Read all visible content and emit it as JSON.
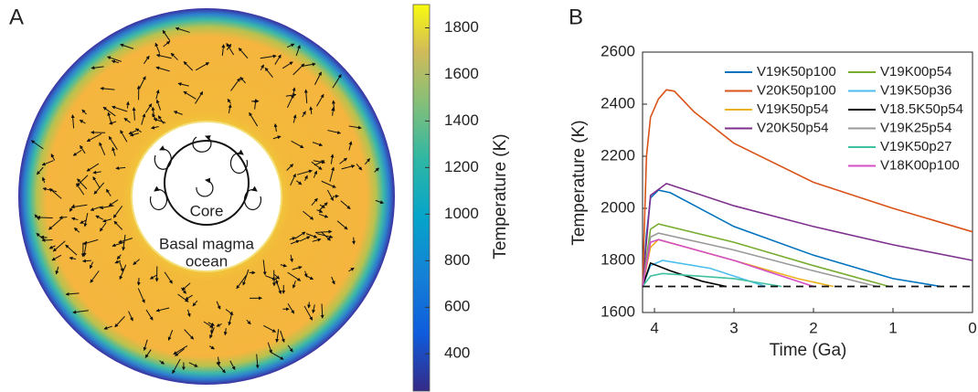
{
  "chart_data": [
    {
      "type": "field",
      "panel": "A",
      "annotations": [
        "Core",
        "Basal magma",
        "ocean"
      ],
      "colorbar_label": "Temperature (K)",
      "clim": [
        240,
        1900
      ],
      "cticks": [
        400,
        600,
        800,
        1000,
        1200,
        1400,
        1600,
        1800
      ]
    },
    {
      "type": "line",
      "panel": "B",
      "xlabel": "Time (Ga)",
      "ylabel": "Temperature (K)",
      "xlim": [
        4.15,
        0
      ],
      "xticks": [
        4,
        3,
        2,
        1,
        0
      ],
      "ylim": [
        1600,
        2600
      ],
      "yticks": [
        1600,
        1800,
        2000,
        2200,
        2400,
        2600
      ],
      "reference_line": 1700,
      "series": [
        {
          "name": "V19K50p100",
          "color": "#0072bd",
          "x": [
            4.15,
            4.1,
            4.05,
            3.95,
            3.8,
            3,
            2,
            1,
            0.4
          ],
          "values": [
            1700,
            1900,
            2040,
            2070,
            2060,
            1930,
            1820,
            1730,
            1700
          ]
        },
        {
          "name": "V20K50p100",
          "color": "#d95319",
          "x": [
            4.15,
            4.1,
            4.05,
            3.95,
            3.85,
            3.75,
            3.5,
            3,
            2,
            1,
            0
          ],
          "values": [
            1700,
            2200,
            2350,
            2420,
            2455,
            2450,
            2370,
            2250,
            2100,
            2000,
            1910
          ]
        },
        {
          "name": "V19K50p54",
          "color": "#edb120",
          "x": [
            4.15,
            4.05,
            3.95,
            3,
            2.2,
            1.75
          ],
          "values": [
            1700,
            1850,
            1880,
            1800,
            1730,
            1700
          ]
        },
        {
          "name": "V20K50p54",
          "color": "#7e2f8e",
          "x": [
            4.15,
            4.05,
            3.85,
            3,
            2,
            1,
            0
          ],
          "values": [
            1700,
            2050,
            2095,
            2010,
            1930,
            1860,
            1800
          ]
        },
        {
          "name": "V19K00p54",
          "color": "#77ac30",
          "x": [
            4.15,
            4.05,
            3.95,
            3,
            2,
            1.05
          ],
          "values": [
            1700,
            1920,
            1940,
            1870,
            1780,
            1700
          ]
        },
        {
          "name": "V19K50p36",
          "color": "#4dbeee",
          "x": [
            4.15,
            4.05,
            3.9,
            3.3,
            2.6
          ],
          "values": [
            1700,
            1780,
            1800,
            1770,
            1700
          ]
        },
        {
          "name": "V18.5K50p54",
          "color": "#000000",
          "x": [
            4.15,
            4.05,
            3.8,
            3.4,
            3.1
          ],
          "values": [
            1700,
            1790,
            1760,
            1720,
            1700
          ]
        },
        {
          "name": "V19K25p54",
          "color": "#999999",
          "x": [
            4.15,
            4.05,
            3.95,
            3,
            2,
            1.2
          ],
          "values": [
            1700,
            1890,
            1905,
            1840,
            1760,
            1700
          ]
        },
        {
          "name": "V19K50p27",
          "color": "#3fc1a0",
          "x": [
            4.15,
            4.05,
            3.9,
            3,
            2.4
          ],
          "values": [
            1700,
            1740,
            1750,
            1730,
            1700
          ]
        },
        {
          "name": "V18K00p100",
          "color": "#d44ec4",
          "x": [
            4.15,
            4.05,
            3.95,
            3,
            2
          ],
          "values": [
            1700,
            1870,
            1880,
            1800,
            1700
          ]
        }
      ]
    }
  ]
}
